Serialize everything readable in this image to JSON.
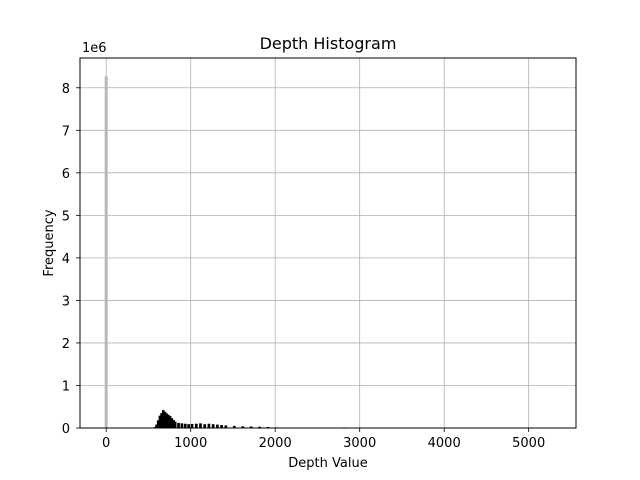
{
  "chart_data": {
    "type": "bar",
    "title": "Depth Histogram",
    "xlabel": "Depth Value",
    "ylabel": "Frequency",
    "y_offset_text": "1e6",
    "xlim": [
      -310,
      5560
    ],
    "ylim": [
      0,
      8700000
    ],
    "x_ticks": [
      0,
      1000,
      2000,
      3000,
      4000,
      5000
    ],
    "x_tick_labels": [
      "0",
      "1000",
      "2000",
      "3000",
      "4000",
      "5000"
    ],
    "y_ticks": [
      0,
      1000000,
      2000000,
      3000000,
      4000000,
      5000000,
      6000000,
      7000000,
      8000000
    ],
    "y_tick_labels": [
      "0",
      "1",
      "2",
      "3",
      "4",
      "5",
      "6",
      "7",
      "8"
    ],
    "grid": true,
    "series": [
      {
        "color": "#000000",
        "edgecolor": "#000000",
        "highlight_color": "#b8b8b8",
        "x": [
          0,
          560,
          580,
          600,
          620,
          640,
          660,
          680,
          700,
          720,
          740,
          760,
          780,
          800,
          840,
          880,
          920,
          960,
          1000,
          1050,
          1100,
          1150,
          1200,
          1250,
          1300,
          1350,
          1400,
          1500,
          1600,
          1700,
          1800,
          1900,
          2000,
          2200,
          2400,
          2600,
          2800,
          3000,
          3200,
          3400,
          3600,
          4000,
          4500,
          5000,
          5250
        ],
        "values": [
          8270000,
          20000,
          80000,
          180000,
          290000,
          350000,
          420000,
          380000,
          340000,
          310000,
          280000,
          230000,
          190000,
          150000,
          120000,
          110000,
          100000,
          90000,
          95000,
          100000,
          110000,
          90000,
          100000,
          90000,
          80000,
          70000,
          60000,
          50000,
          40000,
          35000,
          30000,
          25000,
          15000,
          12000,
          10000,
          12000,
          14000,
          12000,
          10000,
          8000,
          3000,
          2000,
          1500,
          1000,
          800
        ]
      }
    ]
  }
}
